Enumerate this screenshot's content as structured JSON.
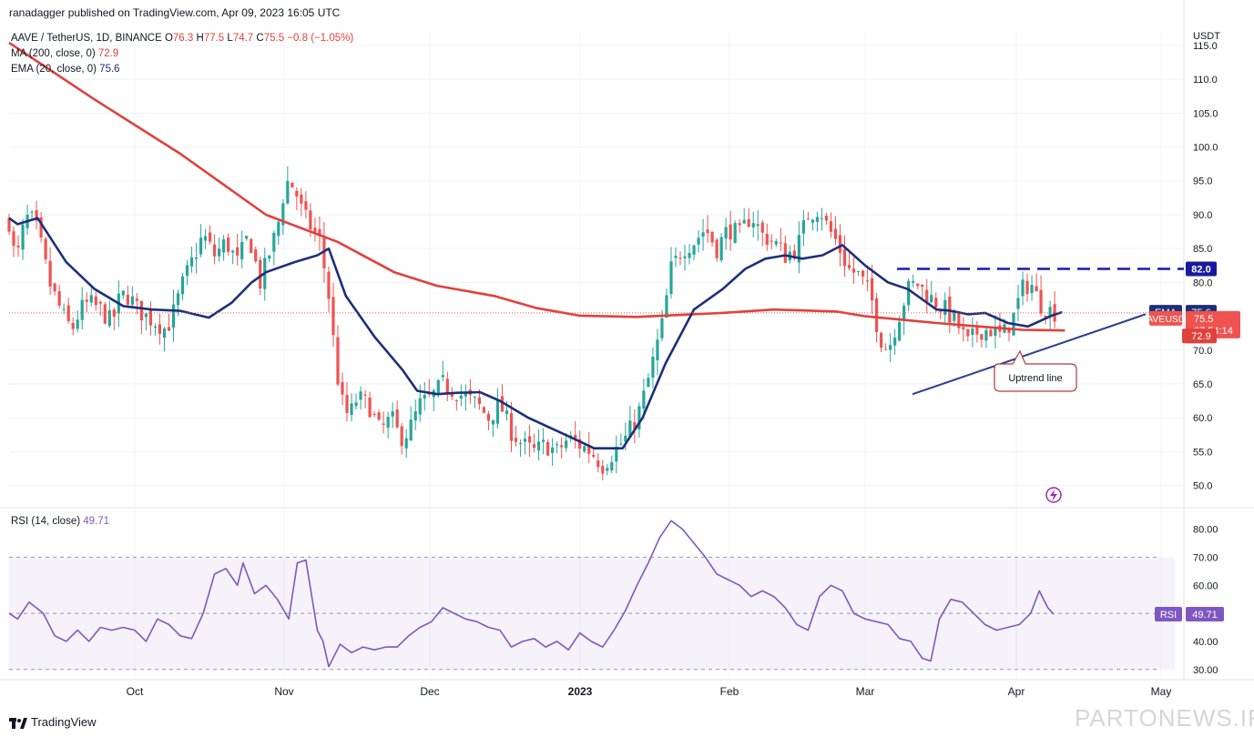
{
  "header": {
    "published": "ranadagger published on TradingView.com, Apr 09, 2023 16:05 UTC"
  },
  "legend": {
    "symbol": "AAVE / TetherUS, 1D, BINANCE",
    "o_label": "O",
    "o": "76.3",
    "h_label": "H",
    "h": "77.5",
    "l_label": "L",
    "l": "74.7",
    "c_label": "C",
    "c": "75.5",
    "change": "−0.8 (−1.05%)",
    "ma_label": "MA (200, close, 0)",
    "ma_value": "72.9",
    "ema_label": "EMA (20, close, 0)",
    "ema_value": "75.6",
    "rsi_label": "RSI (14, close)",
    "rsi_value": "49.71"
  },
  "price_axis": {
    "currency": "USDT",
    "ticks": [
      "115.0",
      "110.0",
      "105.0",
      "100.0",
      "95.0",
      "90.0",
      "85.0",
      "80.0",
      "75.0",
      "70.0",
      "65.0",
      "60.0",
      "55.0",
      "50.0"
    ]
  },
  "rsi_axis": {
    "ticks": [
      "80.00",
      "70.00",
      "60.00",
      "50.00",
      "40.00",
      "30.00"
    ]
  },
  "time_axis": {
    "labels": [
      "Oct",
      "Nov",
      "Dec",
      "2023",
      "Feb",
      "Mar",
      "Apr",
      "May"
    ]
  },
  "labels": {
    "resistance": "82.0",
    "ema_tag": "EMA",
    "ema_val": "75.6",
    "price_tag": "AAVEUSDT",
    "price_val": "75.5",
    "countdown": "07:54:14",
    "ma_tag": "MA",
    "ma_val": "72.9",
    "rsi_tag": "RSI",
    "rsi_val": "49.71",
    "annotation": "Uptrend line"
  },
  "footer": {
    "brand": "TradingView"
  },
  "watermark": "PARTONEWS.IR",
  "colors": {
    "up": "#26a69a",
    "down": "#ef5350",
    "ema": "#1e2f79",
    "ma": "#e0413c",
    "rsi": "#7e57c2",
    "resistance": "#1a1aa6",
    "trend": "#2a3f8f"
  },
  "chart_data": {
    "type": "candlestick",
    "symbol": "AAVE / TetherUS",
    "interval": "1D",
    "price_ylim": [
      47,
      117
    ],
    "rsi_ylim": [
      27,
      87
    ],
    "rsi_levels": [
      70,
      30
    ],
    "resistance": 82.0,
    "uptrend_line": {
      "from": [
        "2023-03-10",
        63.5
      ],
      "to": [
        "2023-04-19",
        75.3
      ]
    },
    "ma_series": [
      [
        0,
        115.4
      ],
      [
        30,
        107
      ],
      [
        60,
        99
      ],
      [
        90,
        90
      ],
      [
        115,
        86
      ],
      [
        135,
        81.5
      ],
      [
        150,
        79.5
      ],
      [
        170,
        78
      ],
      [
        185,
        76.2
      ],
      [
        200,
        75.1
      ],
      [
        220,
        74.9
      ],
      [
        250,
        75.5
      ],
      [
        268,
        76
      ],
      [
        290,
        75.7
      ],
      [
        300,
        75
      ],
      [
        325,
        74
      ],
      [
        340,
        73.5
      ],
      [
        355,
        73
      ],
      [
        370,
        72.9
      ]
    ],
    "ema_series": [
      [
        0,
        89.5
      ],
      [
        3,
        88.6
      ],
      [
        10,
        89.5
      ],
      [
        20,
        83
      ],
      [
        30,
        79
      ],
      [
        40,
        76.5
      ],
      [
        50,
        76
      ],
      [
        60,
        75.8
      ],
      [
        70,
        74.8
      ],
      [
        78,
        77
      ],
      [
        85,
        80
      ],
      [
        90,
        81.5
      ],
      [
        100,
        83
      ],
      [
        108,
        84
      ],
      [
        112,
        85
      ],
      [
        118,
        78
      ],
      [
        128,
        72
      ],
      [
        138,
        67
      ],
      [
        143,
        64
      ],
      [
        150,
        63.5
      ],
      [
        157,
        63.7
      ],
      [
        165,
        63.8
      ],
      [
        172,
        62.5
      ],
      [
        182,
        60
      ],
      [
        195,
        57.5
      ],
      [
        205,
        55.5
      ],
      [
        215,
        55.5
      ],
      [
        222,
        60
      ],
      [
        230,
        68
      ],
      [
        240,
        76
      ],
      [
        250,
        79
      ],
      [
        258,
        82
      ],
      [
        265,
        83.5
      ],
      [
        272,
        84
      ],
      [
        278,
        83.5
      ],
      [
        285,
        84
      ],
      [
        292,
        85.5
      ],
      [
        300,
        82.5
      ],
      [
        308,
        80
      ],
      [
        315,
        79
      ],
      [
        320,
        77.5
      ],
      [
        325,
        76
      ],
      [
        330,
        75.8
      ],
      [
        336,
        75.3
      ],
      [
        342,
        75.5
      ],
      [
        350,
        74
      ],
      [
        357,
        73.5
      ],
      [
        366,
        75.2
      ],
      [
        369,
        75.6
      ]
    ],
    "close_series": [
      [
        0,
        89
      ],
      [
        1,
        85
      ],
      [
        3,
        84
      ],
      [
        5,
        88
      ],
      [
        7,
        90
      ],
      [
        10,
        87.5
      ],
      [
        12,
        84
      ],
      [
        14,
        80
      ],
      [
        17,
        77
      ],
      [
        19,
        75
      ],
      [
        22,
        73
      ],
      [
        25,
        76
      ],
      [
        28,
        77
      ],
      [
        32,
        76
      ],
      [
        36,
        74
      ],
      [
        39,
        78
      ],
      [
        42,
        78
      ],
      [
        45,
        76
      ],
      [
        48,
        75
      ],
      [
        52,
        74
      ],
      [
        55,
        73
      ],
      [
        58,
        76
      ],
      [
        61,
        80
      ],
      [
        64,
        83
      ],
      [
        68,
        87
      ],
      [
        72,
        84
      ],
      [
        76,
        86
      ],
      [
        80,
        83
      ],
      [
        84,
        87
      ],
      [
        88,
        80
      ],
      [
        91,
        84
      ],
      [
        94,
        88
      ],
      [
        97,
        95
      ],
      [
        100,
        94
      ],
      [
        103,
        90
      ],
      [
        106,
        88
      ],
      [
        109,
        86
      ],
      [
        112,
        78
      ],
      [
        114,
        70
      ],
      [
        116,
        63
      ],
      [
        119,
        60
      ],
      [
        122,
        63
      ],
      [
        126,
        62
      ],
      [
        130,
        58
      ],
      [
        134,
        60
      ],
      [
        137,
        57
      ],
      [
        140,
        58
      ],
      [
        144,
        62
      ],
      [
        148,
        63
      ],
      [
        152,
        65
      ],
      [
        156,
        64
      ],
      [
        160,
        63
      ],
      [
        164,
        62
      ],
      [
        168,
        60
      ],
      [
        172,
        62
      ],
      [
        176,
        58
      ],
      [
        180,
        56
      ],
      [
        184,
        55
      ],
      [
        188,
        56
      ],
      [
        192,
        55
      ],
      [
        196,
        57
      ],
      [
        200,
        56
      ],
      [
        204,
        55
      ],
      [
        208,
        53
      ],
      [
        212,
        55
      ],
      [
        216,
        57
      ],
      [
        220,
        60
      ],
      [
        223,
        64
      ],
      [
        226,
        69
      ],
      [
        229,
        74
      ],
      [
        232,
        82
      ],
      [
        236,
        85
      ],
      [
        240,
        86
      ],
      [
        244,
        88
      ],
      [
        248,
        85
      ],
      [
        252,
        88
      ],
      [
        256,
        87
      ],
      [
        260,
        90
      ],
      [
        264,
        87
      ],
      [
        268,
        86
      ],
      [
        272,
        84
      ],
      [
        276,
        85
      ],
      [
        280,
        90
      ],
      [
        284,
        91
      ],
      [
        287,
        88
      ],
      [
        290,
        86
      ],
      [
        294,
        82
      ],
      [
        298,
        81
      ],
      [
        302,
        78
      ],
      [
        305,
        72
      ],
      [
        308,
        70
      ],
      [
        311,
        74
      ],
      [
        315,
        79
      ],
      [
        318,
        80
      ],
      [
        322,
        78
      ],
      [
        325,
        77
      ],
      [
        328,
        76
      ],
      [
        332,
        74
      ],
      [
        336,
        71
      ],
      [
        340,
        73
      ],
      [
        344,
        73
      ],
      [
        348,
        72
      ],
      [
        352,
        75
      ],
      [
        355,
        79
      ],
      [
        358,
        80
      ],
      [
        361,
        77
      ],
      [
        364,
        76
      ],
      [
        367,
        75.5
      ]
    ],
    "rsi_series": [
      [
        0,
        50
      ],
      [
        3,
        48
      ],
      [
        7,
        54
      ],
      [
        12,
        50
      ],
      [
        16,
        42
      ],
      [
        20,
        40
      ],
      [
        24,
        44
      ],
      [
        28,
        40
      ],
      [
        32,
        45
      ],
      [
        36,
        44
      ],
      [
        40,
        45
      ],
      [
        44,
        44
      ],
      [
        48,
        40
      ],
      [
        52,
        48
      ],
      [
        56,
        46
      ],
      [
        60,
        42
      ],
      [
        64,
        41
      ],
      [
        68,
        50
      ],
      [
        72,
        64
      ],
      [
        76,
        66
      ],
      [
        80,
        60
      ],
      [
        82,
        68
      ],
      [
        86,
        57
      ],
      [
        90,
        60
      ],
      [
        94,
        55
      ],
      [
        98,
        48
      ],
      [
        101,
        68
      ],
      [
        104,
        69
      ],
      [
        108,
        44
      ],
      [
        110,
        40
      ],
      [
        112,
        31
      ],
      [
        116,
        39
      ],
      [
        120,
        36
      ],
      [
        124,
        38
      ],
      [
        128,
        37
      ],
      [
        132,
        38
      ],
      [
        136,
        38
      ],
      [
        140,
        42
      ],
      [
        144,
        45
      ],
      [
        148,
        47
      ],
      [
        152,
        52
      ],
      [
        156,
        50
      ],
      [
        160,
        48
      ],
      [
        164,
        47
      ],
      [
        168,
        45
      ],
      [
        172,
        44
      ],
      [
        176,
        38
      ],
      [
        180,
        40
      ],
      [
        184,
        41
      ],
      [
        188,
        38
      ],
      [
        192,
        40
      ],
      [
        196,
        37
      ],
      [
        200,
        43
      ],
      [
        204,
        40
      ],
      [
        208,
        38
      ],
      [
        212,
        44
      ],
      [
        216,
        51
      ],
      [
        220,
        60
      ],
      [
        224,
        68
      ],
      [
        228,
        77
      ],
      [
        232,
        83
      ],
      [
        236,
        80
      ],
      [
        240,
        75
      ],
      [
        244,
        70
      ],
      [
        248,
        64
      ],
      [
        252,
        62
      ],
      [
        256,
        60
      ],
      [
        260,
        56
      ],
      [
        264,
        58
      ],
      [
        268,
        56
      ],
      [
        272,
        52
      ],
      [
        276,
        46
      ],
      [
        280,
        44
      ],
      [
        284,
        56
      ],
      [
        288,
        60
      ],
      [
        292,
        58
      ],
      [
        296,
        50
      ],
      [
        300,
        48
      ],
      [
        304,
        47
      ],
      [
        308,
        46
      ],
      [
        312,
        41
      ],
      [
        316,
        40
      ],
      [
        320,
        34
      ],
      [
        323,
        33
      ],
      [
        326,
        48
      ],
      [
        330,
        55
      ],
      [
        334,
        54
      ],
      [
        338,
        50
      ],
      [
        342,
        46
      ],
      [
        346,
        44
      ],
      [
        350,
        45
      ],
      [
        354,
        46
      ],
      [
        358,
        50
      ],
      [
        361,
        58
      ],
      [
        364,
        52
      ],
      [
        366,
        49.7
      ]
    ],
    "note_x": "x values are day indexes from 2022-08-25 (day 0) to 2023-04-09 (day 227 shown at right edge ~367 scale)"
  }
}
